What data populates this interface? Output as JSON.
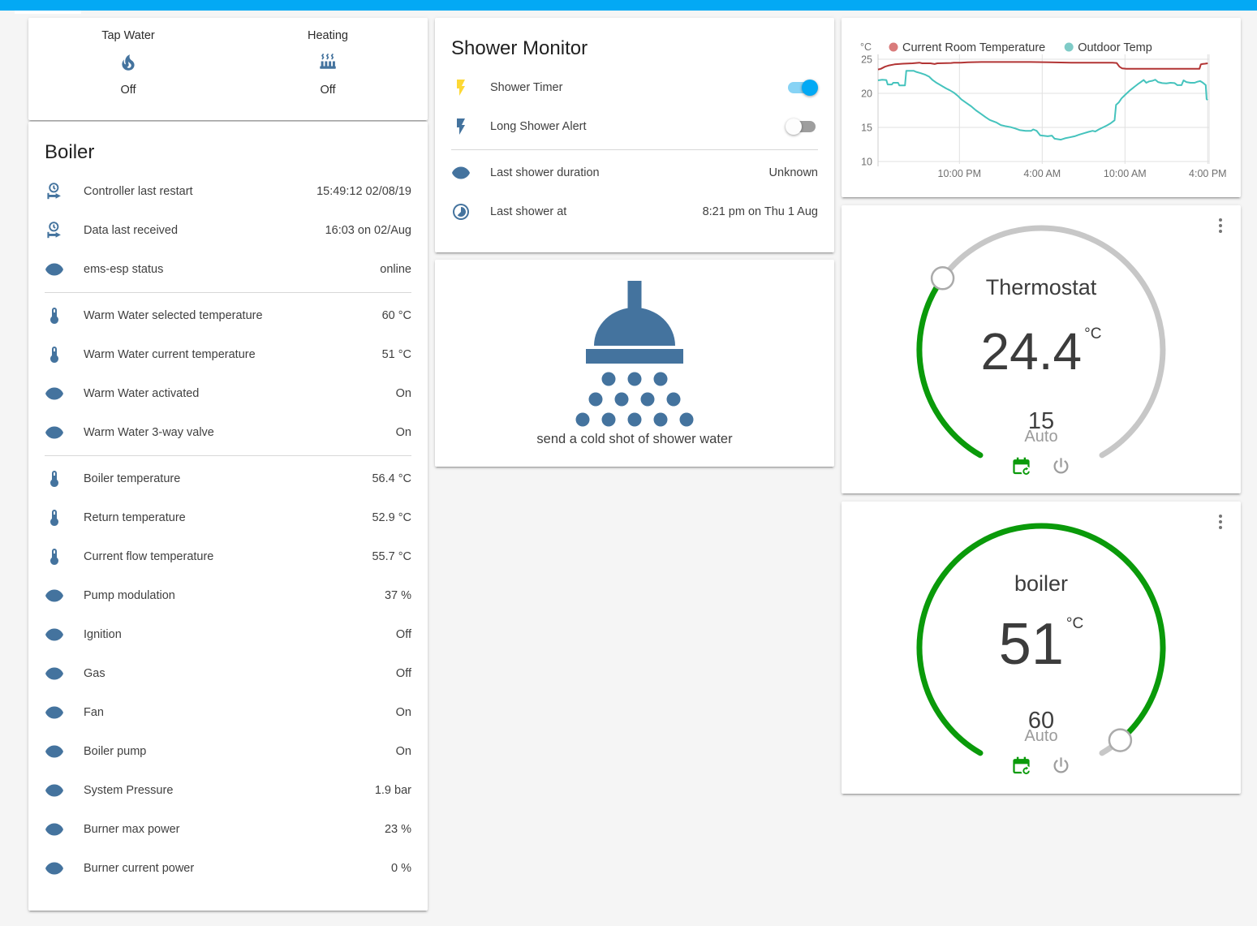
{
  "colors": {
    "header_accent": "#03a9f4",
    "icon_blue": "#44739e",
    "green_accent": "#0a9a0a",
    "toggle_on": "#03a9f4",
    "flash_yellow": "#fdd835"
  },
  "glance_card": {
    "items": [
      {
        "label": "Tap Water",
        "icon": "fire-icon",
        "state": "Off"
      },
      {
        "label": "Heating",
        "icon": "radiator-icon",
        "state": "Off"
      }
    ]
  },
  "boiler_card": {
    "title": "Boiler",
    "sections": [
      {
        "rows": [
          {
            "icon": "clock-start-icon",
            "label": "Controller last restart",
            "value": "15:49:12 02/08/19"
          },
          {
            "icon": "clock-start-icon",
            "label": "Data last received",
            "value": "16:03 on 02/Aug"
          },
          {
            "icon": "eye-icon",
            "label": "ems-esp status",
            "value": "online"
          }
        ]
      },
      {
        "rows": [
          {
            "icon": "thermometer-icon",
            "label": "Warm Water selected temperature",
            "value": "60 °C"
          },
          {
            "icon": "thermometer-icon",
            "label": "Warm Water current temperature",
            "value": "51 °C"
          },
          {
            "icon": "eye-icon",
            "label": "Warm Water activated",
            "value": "On"
          },
          {
            "icon": "eye-icon",
            "label": "Warm Water 3-way valve",
            "value": "On"
          }
        ]
      },
      {
        "rows": [
          {
            "icon": "thermometer-icon",
            "label": "Boiler temperature",
            "value": "56.4 °C"
          },
          {
            "icon": "thermometer-icon",
            "label": "Return temperature",
            "value": "52.9 °C"
          },
          {
            "icon": "thermometer-icon",
            "label": "Current flow temperature",
            "value": "55.7 °C"
          },
          {
            "icon": "eye-icon",
            "label": "Pump modulation",
            "value": "37 %"
          },
          {
            "icon": "eye-icon",
            "label": "Ignition",
            "value": "Off"
          },
          {
            "icon": "eye-icon",
            "label": "Gas",
            "value": "Off"
          },
          {
            "icon": "eye-icon",
            "label": "Fan",
            "value": "On"
          },
          {
            "icon": "eye-icon",
            "label": "Boiler pump",
            "value": "On"
          },
          {
            "icon": "eye-icon",
            "label": "System Pressure",
            "value": "1.9 bar"
          },
          {
            "icon": "eye-icon",
            "label": "Burner max power",
            "value": "23 %"
          },
          {
            "icon": "eye-icon",
            "label": "Burner current power",
            "value": "0 %"
          }
        ]
      }
    ]
  },
  "shower_monitor": {
    "title": "Shower Monitor",
    "toggles": [
      {
        "icon": "flash-icon",
        "icon_color": "#fdd835",
        "label": "Shower Timer",
        "state": "on"
      },
      {
        "icon": "flash-icon",
        "icon_color": "#44739e",
        "label": "Long Shower Alert",
        "state": "off"
      }
    ],
    "rows": [
      {
        "icon": "eye-icon",
        "label": "Last shower duration",
        "value": "Unknown"
      },
      {
        "icon": "clock-icon",
        "label": "Last shower at",
        "value": "8:21 pm on Thu 1 Aug"
      }
    ]
  },
  "shower_action": {
    "label": "send a cold shot of shower water"
  },
  "chart_data": {
    "type": "line",
    "unit": "°C",
    "ylim": [
      10,
      25
    ],
    "yticks": [
      25,
      20,
      15,
      10
    ],
    "grid": true,
    "legend_position": "top",
    "xticks": [
      {
        "h": 5.9,
        "label": "10:00 PM"
      },
      {
        "h": 11.9,
        "label": "4:00 AM"
      },
      {
        "h": 17.9,
        "label": "10:00 AM"
      },
      {
        "h": 23.9,
        "label": "4:00 PM"
      }
    ],
    "series": [
      {
        "name": "Current Room Temperature",
        "color": "#b23434",
        "dot": "#d97b7b",
        "points": [
          [
            0,
            23.5
          ],
          [
            0.2,
            23.6
          ],
          [
            0.5,
            23.9
          ],
          [
            0.8,
            24.1
          ],
          [
            1.2,
            24.25
          ],
          [
            1.8,
            24.35
          ],
          [
            2.5,
            24.4
          ],
          [
            3.0,
            24.5
          ],
          [
            3.2,
            24.4
          ],
          [
            3.8,
            24.4
          ],
          [
            4.1,
            24.3
          ],
          [
            4.3,
            24.4
          ],
          [
            5.3,
            24.45
          ],
          [
            5.5,
            24.5
          ],
          [
            6.0,
            24.5
          ],
          [
            6.5,
            24.55
          ],
          [
            7.5,
            24.6
          ],
          [
            9.0,
            24.6
          ],
          [
            11.0,
            24.6
          ],
          [
            12.5,
            24.55
          ],
          [
            14.0,
            24.5
          ],
          [
            15.5,
            24.5
          ],
          [
            17.0,
            24.5
          ],
          [
            17.3,
            24.45
          ],
          [
            17.5,
            23.9
          ],
          [
            17.7,
            23.65
          ],
          [
            18.0,
            23.6
          ],
          [
            20.0,
            23.6
          ],
          [
            22.0,
            23.6
          ],
          [
            23.3,
            23.6
          ],
          [
            23.4,
            24.25
          ],
          [
            23.5,
            24.3
          ],
          [
            23.7,
            24.35
          ],
          [
            23.9,
            24.4
          ]
        ]
      },
      {
        "name": "Outdoor Temp",
        "color": "#45c3bd",
        "dot": "#7fcbc7",
        "points": [
          [
            0,
            21.9
          ],
          [
            0.3,
            22.0
          ],
          [
            0.6,
            21.95
          ],
          [
            0.7,
            21.3
          ],
          [
            1.0,
            21.3
          ],
          [
            1.1,
            21.55
          ],
          [
            1.45,
            21.55
          ],
          [
            1.55,
            21.15
          ],
          [
            1.95,
            21.15
          ],
          [
            2.05,
            23.3
          ],
          [
            2.6,
            23.3
          ],
          [
            2.75,
            23.15
          ],
          [
            3.1,
            22.95
          ],
          [
            3.4,
            22.75
          ],
          [
            3.7,
            22.45
          ],
          [
            3.95,
            21.95
          ],
          [
            4.2,
            21.6
          ],
          [
            4.45,
            21.3
          ],
          [
            4.7,
            21.0
          ],
          [
            4.95,
            20.7
          ],
          [
            5.2,
            20.45
          ],
          [
            5.5,
            20.1
          ],
          [
            5.8,
            19.6
          ],
          [
            6.05,
            19.1
          ],
          [
            6.4,
            18.6
          ],
          [
            6.75,
            18.1
          ],
          [
            7.1,
            17.5
          ],
          [
            7.45,
            17.0
          ],
          [
            7.8,
            16.5
          ],
          [
            8.1,
            16.1
          ],
          [
            8.35,
            15.9
          ],
          [
            8.6,
            15.7
          ],
          [
            8.9,
            15.35
          ],
          [
            9.2,
            15.2
          ],
          [
            9.6,
            15.05
          ],
          [
            9.95,
            14.85
          ],
          [
            10.3,
            14.6
          ],
          [
            10.7,
            14.5
          ],
          [
            11.1,
            14.5
          ],
          [
            11.25,
            14.7
          ],
          [
            11.5,
            14.5
          ],
          [
            11.75,
            13.85
          ],
          [
            12.3,
            13.7
          ],
          [
            12.6,
            13.8
          ],
          [
            12.8,
            13.35
          ],
          [
            13.25,
            13.2
          ],
          [
            13.55,
            13.4
          ],
          [
            13.9,
            13.55
          ],
          [
            14.25,
            13.7
          ],
          [
            14.6,
            13.95
          ],
          [
            14.95,
            14.15
          ],
          [
            15.25,
            14.35
          ],
          [
            15.55,
            14.5
          ],
          [
            15.75,
            14.4
          ],
          [
            16.0,
            14.7
          ],
          [
            16.3,
            15.0
          ],
          [
            16.6,
            15.3
          ],
          [
            16.85,
            15.6
          ],
          [
            17.05,
            15.9
          ],
          [
            17.15,
            16.05
          ],
          [
            17.25,
            18.3
          ],
          [
            17.45,
            18.65
          ],
          [
            17.65,
            19.25
          ],
          [
            17.85,
            19.65
          ],
          [
            18.05,
            20.05
          ],
          [
            18.3,
            20.5
          ],
          [
            18.55,
            20.9
          ],
          [
            18.8,
            21.3
          ],
          [
            19.05,
            21.65
          ],
          [
            19.25,
            21.95
          ],
          [
            19.45,
            21.55
          ],
          [
            19.65,
            21.75
          ],
          [
            19.9,
            21.85
          ],
          [
            20.1,
            22.0
          ],
          [
            20.3,
            21.65
          ],
          [
            20.6,
            21.5
          ],
          [
            20.9,
            21.45
          ],
          [
            21.2,
            21.55
          ],
          [
            21.5,
            21.5
          ],
          [
            21.7,
            21.2
          ],
          [
            22.0,
            21.2
          ],
          [
            22.15,
            21.9
          ],
          [
            22.35,
            21.65
          ],
          [
            22.65,
            21.55
          ],
          [
            22.95,
            21.55
          ],
          [
            23.15,
            21.7
          ],
          [
            23.35,
            21.8
          ],
          [
            23.55,
            21.55
          ],
          [
            23.75,
            21.2
          ],
          [
            23.82,
            19.15
          ],
          [
            23.9,
            19.05
          ]
        ]
      }
    ]
  },
  "thermostat_card": {
    "title": "Thermostat",
    "value": "24.4",
    "unit": "°C",
    "setpoint": "15",
    "mode": "Auto",
    "fraction": 0.32,
    "accent": "#0a9a0a"
  },
  "boiler_gauge_card": {
    "title": "boiler",
    "value": "51",
    "unit": "°C",
    "setpoint": "60",
    "mode": "Auto",
    "fraction": 0.965,
    "accent": "#0a9a0a"
  }
}
